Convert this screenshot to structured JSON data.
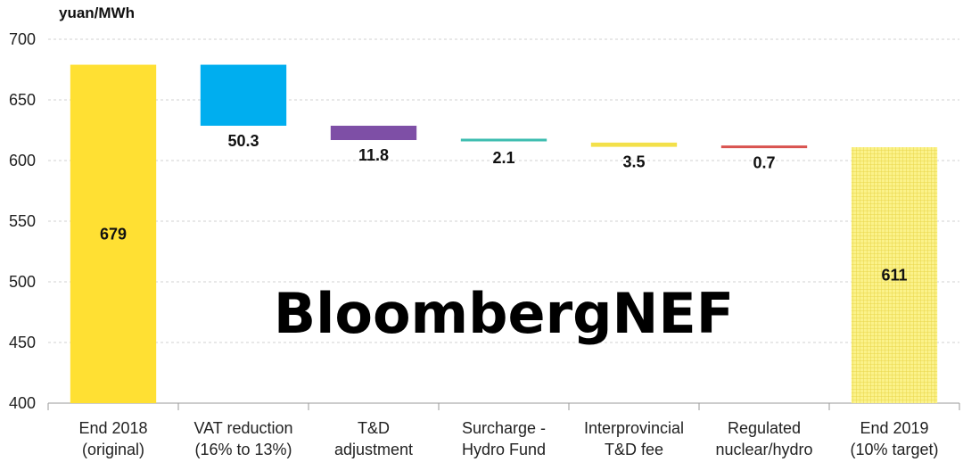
{
  "chart_data": {
    "type": "waterfall",
    "ylabel": "yuan/MWh",
    "ylim": [
      400,
      700
    ],
    "yticks": [
      400,
      450,
      500,
      550,
      600,
      650,
      700
    ],
    "grid": true,
    "categories": [
      [
        "End 2018",
        "(original)"
      ],
      [
        "VAT reduction",
        "(16% to 13%)"
      ],
      [
        "T&D",
        "adjustment"
      ],
      [
        "Surcharge -",
        "Hydro Fund"
      ],
      [
        "Interprovincial",
        "T&D fee"
      ],
      [
        "Regulated",
        "nuclear/hydro"
      ],
      [
        "End 2019",
        "(10% target)"
      ]
    ],
    "bars": [
      {
        "kind": "total",
        "value": 679,
        "label": "679",
        "color": "#FFE033"
      },
      {
        "kind": "decrease",
        "value": 50.3,
        "label": "50.3",
        "color": "#00AEEF"
      },
      {
        "kind": "decrease",
        "value": 11.8,
        "label": "11.8",
        "color": "#7E4FA6"
      },
      {
        "kind": "decrease",
        "value": 2.1,
        "label": "2.1",
        "color": "#3DBDB0"
      },
      {
        "kind": "decrease",
        "value": 3.5,
        "label": "3.5",
        "color": "#F3E04A"
      },
      {
        "kind": "decrease",
        "value": 0.7,
        "label": "0.7",
        "color": "#D9534F"
      },
      {
        "kind": "total_target",
        "value": 611,
        "label": "611",
        "color": "#FBF28A",
        "pattern": "grid"
      }
    ],
    "colors": {
      "grid": "#d0d0d0",
      "axis": "#9a9a9a",
      "target_pattern_line": "#E8D64A"
    }
  },
  "watermark": {
    "text": "BloombergNEF"
  }
}
